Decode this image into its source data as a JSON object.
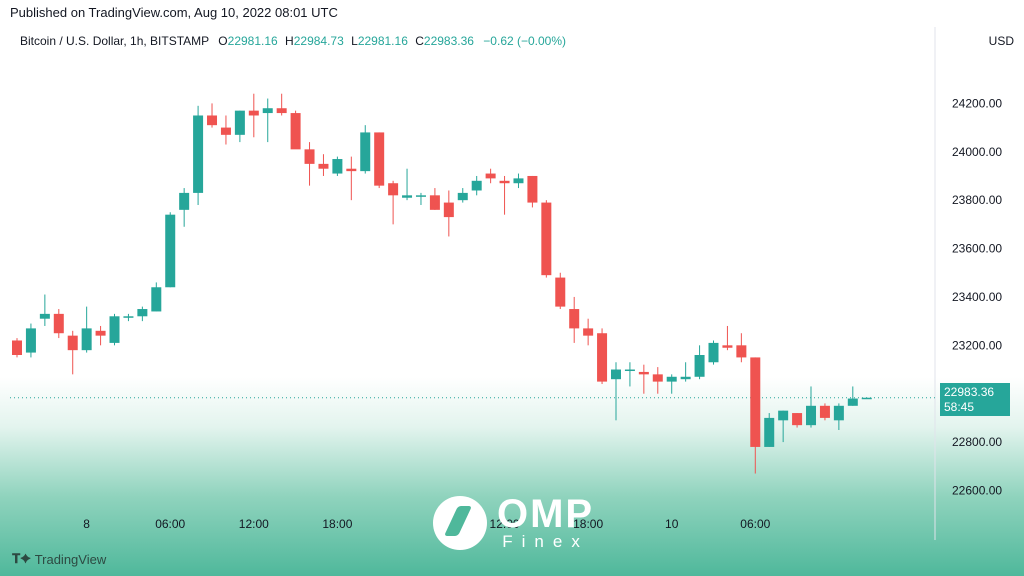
{
  "header": {
    "published": "Published on TradingView.com, Aug 10, 2022 08:01 UTC"
  },
  "legend": {
    "symbol": "Bitcoin / U.S. Dollar, 1h, BITSTAMP",
    "o_key": "O",
    "o_val": "22981.16",
    "h_key": "H",
    "h_val": "22984.73",
    "l_key": "L",
    "l_val": "22981.16",
    "c_key": "C",
    "c_val": "22983.36",
    "change": "−0.62 (−0.00%)"
  },
  "currency": "USD",
  "price_tag": {
    "price": "22983.36",
    "countdown": "58:45"
  },
  "branding": {
    "tradingview": "TradingView",
    "omp": "OMP",
    "omp_sub": "Finex"
  },
  "colors": {
    "up": "#26a69a",
    "down": "#ef5350",
    "tag": "#26a69a"
  },
  "chart_data": {
    "type": "candlestick",
    "ylim": [
      22540,
      24400
    ],
    "y_ticks": [
      22600,
      22800,
      23000,
      23200,
      23400,
      23600,
      23800,
      24000,
      24200
    ],
    "y_tick_labels": [
      "22600.00",
      "22800.00",
      "23000.00",
      "23200.00",
      "23400.00",
      "23600.00",
      "23800.00",
      "24000.00",
      "24200.00"
    ],
    "x_ticks": [
      {
        "index": 5,
        "label": "8"
      },
      {
        "index": 11,
        "label": "06:00"
      },
      {
        "index": 17,
        "label": "12:00"
      },
      {
        "index": 23,
        "label": "18:00"
      },
      {
        "index": 29,
        "label": ""
      },
      {
        "index": 35,
        "label": "12:00"
      },
      {
        "index": 41,
        "label": "18:00"
      },
      {
        "index": 47,
        "label": "10"
      },
      {
        "index": 53,
        "label": "06:00"
      }
    ],
    "last_price": 22983.36,
    "candles": [
      {
        "o": 23220,
        "h": 23230,
        "l": 23150,
        "c": 23160
      },
      {
        "o": 23170,
        "h": 23290,
        "l": 23150,
        "c": 23270
      },
      {
        "o": 23310,
        "h": 23410,
        "l": 23280,
        "c": 23330
      },
      {
        "o": 23330,
        "h": 23350,
        "l": 23230,
        "c": 23250
      },
      {
        "o": 23240,
        "h": 23260,
        "l": 23080,
        "c": 23180
      },
      {
        "o": 23180,
        "h": 23360,
        "l": 23170,
        "c": 23270
      },
      {
        "o": 23260,
        "h": 23280,
        "l": 23200,
        "c": 23240
      },
      {
        "o": 23210,
        "h": 23330,
        "l": 23200,
        "c": 23320
      },
      {
        "o": 23320,
        "h": 23330,
        "l": 23300,
        "c": 23320
      },
      {
        "o": 23320,
        "h": 23360,
        "l": 23300,
        "c": 23350
      },
      {
        "o": 23340,
        "h": 23460,
        "l": 23340,
        "c": 23440
      },
      {
        "o": 23440,
        "h": 23750,
        "l": 23440,
        "c": 23740
      },
      {
        "o": 23760,
        "h": 23850,
        "l": 23690,
        "c": 23830
      },
      {
        "o": 23830,
        "h": 24190,
        "l": 23780,
        "c": 24150
      },
      {
        "o": 24150,
        "h": 24200,
        "l": 24100,
        "c": 24110
      },
      {
        "o": 24100,
        "h": 24150,
        "l": 24030,
        "c": 24070
      },
      {
        "o": 24070,
        "h": 24170,
        "l": 24040,
        "c": 24170
      },
      {
        "o": 24170,
        "h": 24240,
        "l": 24060,
        "c": 24150
      },
      {
        "o": 24160,
        "h": 24220,
        "l": 24040,
        "c": 24180
      },
      {
        "o": 24180,
        "h": 24240,
        "l": 24150,
        "c": 24160
      },
      {
        "o": 24160,
        "h": 24170,
        "l": 24020,
        "c": 24010
      },
      {
        "o": 24010,
        "h": 24040,
        "l": 23860,
        "c": 23950
      },
      {
        "o": 23950,
        "h": 23990,
        "l": 23900,
        "c": 23930
      },
      {
        "o": 23910,
        "h": 23980,
        "l": 23900,
        "c": 23970
      },
      {
        "o": 23930,
        "h": 23980,
        "l": 23800,
        "c": 23920
      },
      {
        "o": 23920,
        "h": 24110,
        "l": 23910,
        "c": 24080
      },
      {
        "o": 24080,
        "h": 24080,
        "l": 23850,
        "c": 23860
      },
      {
        "o": 23870,
        "h": 23880,
        "l": 23700,
        "c": 23820
      },
      {
        "o": 23810,
        "h": 23930,
        "l": 23800,
        "c": 23820
      },
      {
        "o": 23820,
        "h": 23830,
        "l": 23780,
        "c": 23820
      },
      {
        "o": 23820,
        "h": 23850,
        "l": 23760,
        "c": 23760
      },
      {
        "o": 23790,
        "h": 23840,
        "l": 23650,
        "c": 23730
      },
      {
        "o": 23800,
        "h": 23850,
        "l": 23790,
        "c": 23830
      },
      {
        "o": 23840,
        "h": 23900,
        "l": 23820,
        "c": 23880
      },
      {
        "o": 23910,
        "h": 23930,
        "l": 23870,
        "c": 23890
      },
      {
        "o": 23880,
        "h": 23900,
        "l": 23740,
        "c": 23870
      },
      {
        "o": 23870,
        "h": 23910,
        "l": 23850,
        "c": 23890
      },
      {
        "o": 23900,
        "h": 23900,
        "l": 23770,
        "c": 23790
      },
      {
        "o": 23790,
        "h": 23800,
        "l": 23480,
        "c": 23490
      },
      {
        "o": 23480,
        "h": 23500,
        "l": 23350,
        "c": 23360
      },
      {
        "o": 23350,
        "h": 23400,
        "l": 23210,
        "c": 23270
      },
      {
        "o": 23270,
        "h": 23310,
        "l": 23200,
        "c": 23240
      },
      {
        "o": 23250,
        "h": 23270,
        "l": 23040,
        "c": 23050
      },
      {
        "o": 23060,
        "h": 23130,
        "l": 22890,
        "c": 23100
      },
      {
        "o": 23100,
        "h": 23130,
        "l": 23030,
        "c": 23100
      },
      {
        "o": 23090,
        "h": 23120,
        "l": 23000,
        "c": 23080
      },
      {
        "o": 23080,
        "h": 23110,
        "l": 23000,
        "c": 23050
      },
      {
        "o": 23050,
        "h": 23080,
        "l": 23000,
        "c": 23070
      },
      {
        "o": 23060,
        "h": 23130,
        "l": 23050,
        "c": 23070
      },
      {
        "o": 23070,
        "h": 23200,
        "l": 23060,
        "c": 23160
      },
      {
        "o": 23130,
        "h": 23220,
        "l": 23120,
        "c": 23210
      },
      {
        "o": 23200,
        "h": 23280,
        "l": 23180,
        "c": 23190
      },
      {
        "o": 23200,
        "h": 23250,
        "l": 23130,
        "c": 23150
      },
      {
        "o": 23150,
        "h": 23150,
        "l": 22670,
        "c": 22780
      },
      {
        "o": 22780,
        "h": 22920,
        "l": 22780,
        "c": 22900
      },
      {
        "o": 22890,
        "h": 22930,
        "l": 22800,
        "c": 22930
      },
      {
        "o": 22920,
        "h": 22920,
        "l": 22860,
        "c": 22870
      },
      {
        "o": 22870,
        "h": 23030,
        "l": 22860,
        "c": 22950
      },
      {
        "o": 22950,
        "h": 22960,
        "l": 22890,
        "c": 22900
      },
      {
        "o": 22890,
        "h": 22960,
        "l": 22850,
        "c": 22950
      },
      {
        "o": 22950,
        "h": 23030,
        "l": 22950,
        "c": 22980
      },
      {
        "o": 22981.16,
        "h": 22984.73,
        "l": 22981.16,
        "c": 22983.36
      }
    ]
  }
}
